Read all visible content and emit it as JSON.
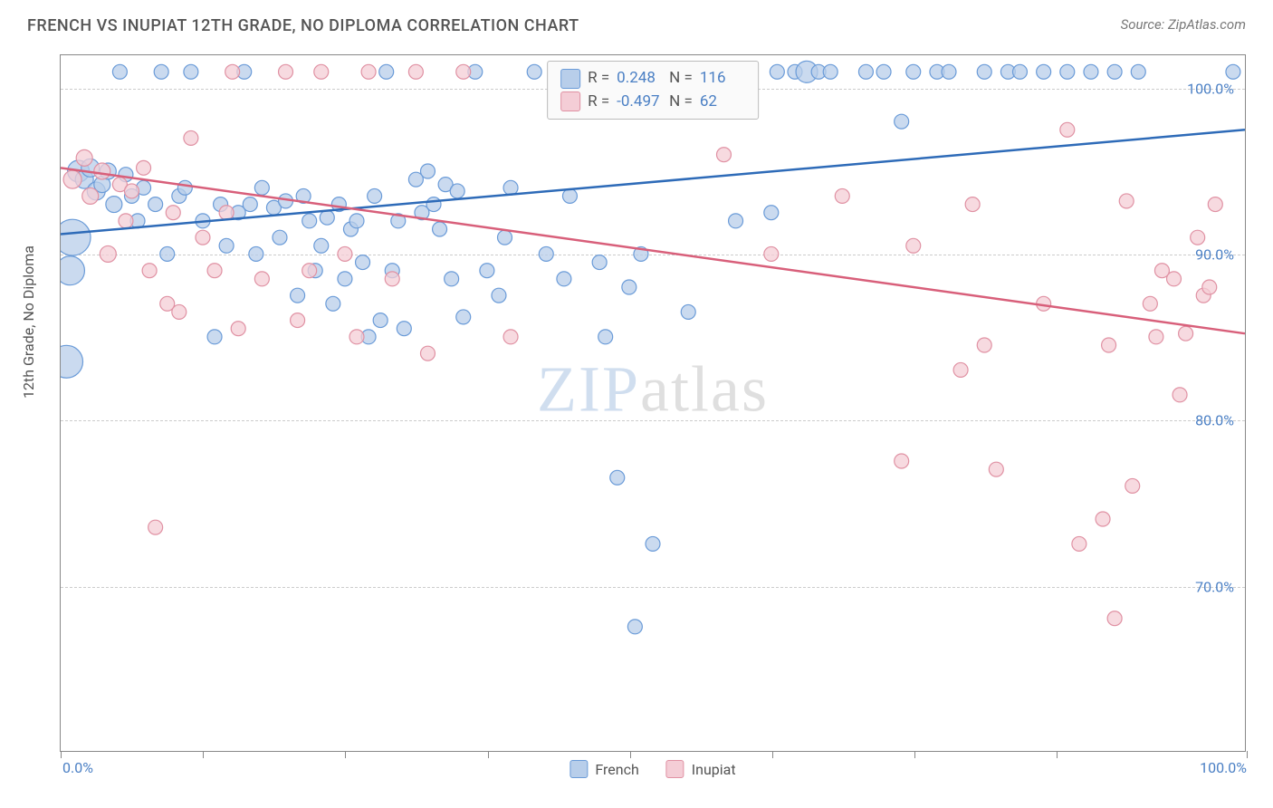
{
  "header": {
    "title": "FRENCH VS INUPIAT 12TH GRADE, NO DIPLOMA CORRELATION CHART",
    "source": "Source: ZipAtlas.com"
  },
  "chart": {
    "type": "scatter",
    "y_axis_label": "12th Grade, No Diploma",
    "xlim": [
      0,
      100
    ],
    "ylim": [
      60,
      102
    ],
    "y_ticks": [
      70,
      80,
      90,
      100
    ],
    "y_tick_labels": [
      "70.0%",
      "80.0%",
      "90.0%",
      "100.0%"
    ],
    "x_ticks": [
      0,
      12,
      24,
      36,
      48,
      60,
      72,
      84,
      100
    ],
    "x_tick_labels_shown": {
      "0": "0.0%",
      "100": "100.0%"
    },
    "grid_color": "#cccccc",
    "background_color": "#ffffff",
    "watermark": {
      "text_a": "ZIP",
      "text_b": "atlas"
    },
    "series": [
      {
        "name": "French",
        "color_fill": "#b8ceea",
        "color_stroke": "#6a9bd8",
        "line_color": "#2e6bb8",
        "r_value": "0.248",
        "n_value": "116",
        "regression": {
          "x1": 0,
          "y1": 91.2,
          "x2": 100,
          "y2": 97.5
        },
        "points": [
          {
            "x": 0.5,
            "y": 83.5,
            "r": 18
          },
          {
            "x": 0.8,
            "y": 89,
            "r": 16
          },
          {
            "x": 1,
            "y": 91,
            "r": 20
          },
          {
            "x": 1.5,
            "y": 95,
            "r": 12
          },
          {
            "x": 2,
            "y": 94.5,
            "r": 10
          },
          {
            "x": 2.5,
            "y": 95.2,
            "r": 10
          },
          {
            "x": 3,
            "y": 93.8,
            "r": 10
          },
          {
            "x": 3.5,
            "y": 94.2,
            "r": 9
          },
          {
            "x": 4,
            "y": 95,
            "r": 9
          },
          {
            "x": 4.5,
            "y": 93,
            "r": 9
          },
          {
            "x": 5,
            "y": 101,
            "r": 8
          },
          {
            "x": 5.5,
            "y": 94.8,
            "r": 8
          },
          {
            "x": 6,
            "y": 93.5,
            "r": 8
          },
          {
            "x": 6.5,
            "y": 92,
            "r": 8
          },
          {
            "x": 7,
            "y": 94,
            "r": 8
          },
          {
            "x": 8,
            "y": 93,
            "r": 8
          },
          {
            "x": 8.5,
            "y": 101,
            "r": 8
          },
          {
            "x": 9,
            "y": 90,
            "r": 8
          },
          {
            "x": 10,
            "y": 93.5,
            "r": 8
          },
          {
            "x": 10.5,
            "y": 94,
            "r": 8
          },
          {
            "x": 11,
            "y": 101,
            "r": 8
          },
          {
            "x": 12,
            "y": 92,
            "r": 8
          },
          {
            "x": 13,
            "y": 85,
            "r": 8
          },
          {
            "x": 13.5,
            "y": 93,
            "r": 8
          },
          {
            "x": 14,
            "y": 90.5,
            "r": 8
          },
          {
            "x": 15,
            "y": 92.5,
            "r": 8
          },
          {
            "x": 15.5,
            "y": 101,
            "r": 8
          },
          {
            "x": 16,
            "y": 93,
            "r": 8
          },
          {
            "x": 16.5,
            "y": 90,
            "r": 8
          },
          {
            "x": 17,
            "y": 94,
            "r": 8
          },
          {
            "x": 18,
            "y": 92.8,
            "r": 8
          },
          {
            "x": 18.5,
            "y": 91,
            "r": 8
          },
          {
            "x": 19,
            "y": 93.2,
            "r": 8
          },
          {
            "x": 20,
            "y": 87.5,
            "r": 8
          },
          {
            "x": 20.5,
            "y": 93.5,
            "r": 8
          },
          {
            "x": 21,
            "y": 92,
            "r": 8
          },
          {
            "x": 21.5,
            "y": 89,
            "r": 8
          },
          {
            "x": 22,
            "y": 90.5,
            "r": 8
          },
          {
            "x": 22.5,
            "y": 92.2,
            "r": 8
          },
          {
            "x": 23,
            "y": 87,
            "r": 8
          },
          {
            "x": 23.5,
            "y": 93,
            "r": 8
          },
          {
            "x": 24,
            "y": 88.5,
            "r": 8
          },
          {
            "x": 24.5,
            "y": 91.5,
            "r": 8
          },
          {
            "x": 25,
            "y": 92,
            "r": 8
          },
          {
            "x": 25.5,
            "y": 89.5,
            "r": 8
          },
          {
            "x": 26,
            "y": 85,
            "r": 8
          },
          {
            "x": 26.5,
            "y": 93.5,
            "r": 8
          },
          {
            "x": 27,
            "y": 86,
            "r": 8
          },
          {
            "x": 27.5,
            "y": 101,
            "r": 8
          },
          {
            "x": 28,
            "y": 89,
            "r": 8
          },
          {
            "x": 28.5,
            "y": 92,
            "r": 8
          },
          {
            "x": 29,
            "y": 85.5,
            "r": 8
          },
          {
            "x": 30,
            "y": 94.5,
            "r": 8
          },
          {
            "x": 30.5,
            "y": 92.5,
            "r": 8
          },
          {
            "x": 31,
            "y": 95,
            "r": 8
          },
          {
            "x": 31.5,
            "y": 93,
            "r": 8
          },
          {
            "x": 32,
            "y": 91.5,
            "r": 8
          },
          {
            "x": 32.5,
            "y": 94.2,
            "r": 8
          },
          {
            "x": 33,
            "y": 88.5,
            "r": 8
          },
          {
            "x": 33.5,
            "y": 93.8,
            "r": 8
          },
          {
            "x": 34,
            "y": 86.2,
            "r": 8
          },
          {
            "x": 35,
            "y": 101,
            "r": 8
          },
          {
            "x": 36,
            "y": 89,
            "r": 8
          },
          {
            "x": 37,
            "y": 87.5,
            "r": 8
          },
          {
            "x": 37.5,
            "y": 91,
            "r": 8
          },
          {
            "x": 38,
            "y": 94,
            "r": 8
          },
          {
            "x": 40,
            "y": 101,
            "r": 8
          },
          {
            "x": 41,
            "y": 90,
            "r": 8
          },
          {
            "x": 42,
            "y": 101,
            "r": 8
          },
          {
            "x": 42.5,
            "y": 88.5,
            "r": 8
          },
          {
            "x": 43,
            "y": 93.5,
            "r": 8
          },
          {
            "x": 44,
            "y": 101,
            "r": 8
          },
          {
            "x": 45,
            "y": 101,
            "r": 8
          },
          {
            "x": 45.5,
            "y": 89.5,
            "r": 8
          },
          {
            "x": 46,
            "y": 85,
            "r": 8
          },
          {
            "x": 47,
            "y": 76.5,
            "r": 8
          },
          {
            "x": 48,
            "y": 88,
            "r": 8
          },
          {
            "x": 48.5,
            "y": 67.5,
            "r": 8
          },
          {
            "x": 49,
            "y": 90,
            "r": 8
          },
          {
            "x": 50,
            "y": 72.5,
            "r": 8
          },
          {
            "x": 51,
            "y": 101,
            "r": 8
          },
          {
            "x": 53,
            "y": 86.5,
            "r": 8
          },
          {
            "x": 54,
            "y": 101,
            "r": 8
          },
          {
            "x": 55,
            "y": 101,
            "r": 8
          },
          {
            "x": 57,
            "y": 92,
            "r": 8
          },
          {
            "x": 58,
            "y": 101,
            "r": 8
          },
          {
            "x": 60,
            "y": 92.5,
            "r": 8
          },
          {
            "x": 60.5,
            "y": 101,
            "r": 8
          },
          {
            "x": 62,
            "y": 101,
            "r": 8
          },
          {
            "x": 63,
            "y": 101,
            "r": 12
          },
          {
            "x": 64,
            "y": 101,
            "r": 8
          },
          {
            "x": 65,
            "y": 101,
            "r": 8
          },
          {
            "x": 68,
            "y": 101,
            "r": 8
          },
          {
            "x": 69.5,
            "y": 101,
            "r": 8
          },
          {
            "x": 71,
            "y": 98,
            "r": 8
          },
          {
            "x": 72,
            "y": 101,
            "r": 8
          },
          {
            "x": 74,
            "y": 101,
            "r": 8
          },
          {
            "x": 75,
            "y": 101,
            "r": 8
          },
          {
            "x": 78,
            "y": 101,
            "r": 8
          },
          {
            "x": 80,
            "y": 101,
            "r": 8
          },
          {
            "x": 81,
            "y": 101,
            "r": 8
          },
          {
            "x": 83,
            "y": 101,
            "r": 8
          },
          {
            "x": 85,
            "y": 101,
            "r": 8
          },
          {
            "x": 87,
            "y": 101,
            "r": 8
          },
          {
            "x": 89,
            "y": 101,
            "r": 8
          },
          {
            "x": 91,
            "y": 101,
            "r": 8
          },
          {
            "x": 99,
            "y": 101,
            "r": 8
          }
        ]
      },
      {
        "name": "Inupiat",
        "color_fill": "#f4cdd6",
        "color_stroke": "#e091a3",
        "line_color": "#d85f7a",
        "r_value": "-0.497",
        "n_value": "62",
        "regression": {
          "x1": 0,
          "y1": 95.2,
          "x2": 100,
          "y2": 85.2
        },
        "points": [
          {
            "x": 1,
            "y": 94.5,
            "r": 10
          },
          {
            "x": 2,
            "y": 95.8,
            "r": 9
          },
          {
            "x": 2.5,
            "y": 93.5,
            "r": 9
          },
          {
            "x": 3.5,
            "y": 95,
            "r": 9
          },
          {
            "x": 4,
            "y": 90,
            "r": 9
          },
          {
            "x": 5,
            "y": 94.2,
            "r": 8
          },
          {
            "x": 5.5,
            "y": 92,
            "r": 8
          },
          {
            "x": 6,
            "y": 93.8,
            "r": 8
          },
          {
            "x": 7,
            "y": 95.2,
            "r": 8
          },
          {
            "x": 7.5,
            "y": 89,
            "r": 8
          },
          {
            "x": 8,
            "y": 73.5,
            "r": 8
          },
          {
            "x": 9,
            "y": 87,
            "r": 8
          },
          {
            "x": 9.5,
            "y": 92.5,
            "r": 8
          },
          {
            "x": 10,
            "y": 86.5,
            "r": 8
          },
          {
            "x": 11,
            "y": 97,
            "r": 8
          },
          {
            "x": 12,
            "y": 91,
            "r": 8
          },
          {
            "x": 13,
            "y": 89,
            "r": 8
          },
          {
            "x": 14,
            "y": 92.5,
            "r": 8
          },
          {
            "x": 14.5,
            "y": 101,
            "r": 8
          },
          {
            "x": 15,
            "y": 85.5,
            "r": 8
          },
          {
            "x": 17,
            "y": 88.5,
            "r": 8
          },
          {
            "x": 19,
            "y": 101,
            "r": 8
          },
          {
            "x": 20,
            "y": 86,
            "r": 8
          },
          {
            "x": 21,
            "y": 89,
            "r": 8
          },
          {
            "x": 22,
            "y": 101,
            "r": 8
          },
          {
            "x": 24,
            "y": 90,
            "r": 8
          },
          {
            "x": 25,
            "y": 85,
            "r": 8
          },
          {
            "x": 26,
            "y": 101,
            "r": 8
          },
          {
            "x": 28,
            "y": 88.5,
            "r": 8
          },
          {
            "x": 30,
            "y": 101,
            "r": 8
          },
          {
            "x": 31,
            "y": 84,
            "r": 8
          },
          {
            "x": 34,
            "y": 101,
            "r": 8
          },
          {
            "x": 38,
            "y": 85,
            "r": 8
          },
          {
            "x": 46.5,
            "y": 101,
            "r": 8
          },
          {
            "x": 48,
            "y": 101,
            "r": 8
          },
          {
            "x": 56,
            "y": 96,
            "r": 8
          },
          {
            "x": 60,
            "y": 90,
            "r": 8
          },
          {
            "x": 66,
            "y": 93.5,
            "r": 8
          },
          {
            "x": 71,
            "y": 77.5,
            "r": 8
          },
          {
            "x": 72,
            "y": 90.5,
            "r": 8
          },
          {
            "x": 76,
            "y": 83,
            "r": 8
          },
          {
            "x": 77,
            "y": 93,
            "r": 8
          },
          {
            "x": 78,
            "y": 84.5,
            "r": 8
          },
          {
            "x": 79,
            "y": 77,
            "r": 8
          },
          {
            "x": 83,
            "y": 87,
            "r": 8
          },
          {
            "x": 85,
            "y": 97.5,
            "r": 8
          },
          {
            "x": 86,
            "y": 72.5,
            "r": 8
          },
          {
            "x": 88,
            "y": 74,
            "r": 8
          },
          {
            "x": 88.5,
            "y": 84.5,
            "r": 8
          },
          {
            "x": 89,
            "y": 68,
            "r": 8
          },
          {
            "x": 90,
            "y": 93.2,
            "r": 8
          },
          {
            "x": 90.5,
            "y": 76,
            "r": 8
          },
          {
            "x": 92,
            "y": 87,
            "r": 8
          },
          {
            "x": 92.5,
            "y": 85,
            "r": 8
          },
          {
            "x": 93,
            "y": 89,
            "r": 8
          },
          {
            "x": 94,
            "y": 88.5,
            "r": 8
          },
          {
            "x": 94.5,
            "y": 81.5,
            "r": 8
          },
          {
            "x": 95,
            "y": 85.2,
            "r": 8
          },
          {
            "x": 96,
            "y": 91,
            "r": 8
          },
          {
            "x": 96.5,
            "y": 87.5,
            "r": 8
          },
          {
            "x": 97,
            "y": 88,
            "r": 8
          },
          {
            "x": 97.5,
            "y": 93,
            "r": 8
          }
        ]
      }
    ],
    "bottom_legend": [
      {
        "label": "French",
        "fill": "#b8ceea",
        "stroke": "#6a9bd8"
      },
      {
        "label": "Inupiat",
        "fill": "#f4cdd6",
        "stroke": "#e091a3"
      }
    ]
  }
}
